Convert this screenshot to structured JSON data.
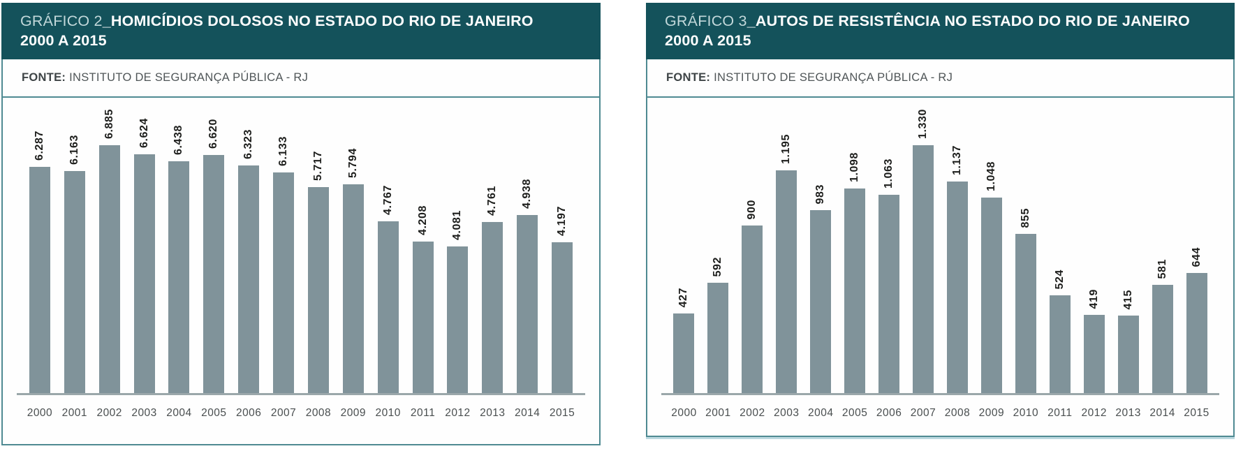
{
  "colors": {
    "header_background": "#14525B",
    "panel_border": "#4F8A92",
    "bar_fill": "#80939A",
    "axis_line": "#9AA7AA",
    "value_label_text": "#1D1E1C",
    "year_label_text": "#494E4F",
    "title_prefix_text": "#C2D8DA",
    "title_bold_text": "#FFFFFF",
    "right_panel_accent": "#BCD9E0"
  },
  "chart_data": [
    {
      "type": "bar",
      "title_prefix": "GRÁFICO 2",
      "title_bold_line1": "_HOMICÍDIOS DOLOSOS NO ESTADO DO RIO DE JANEIRO",
      "title_bold_line2": "2000 A 2015",
      "source_label": "FONTE:",
      "source_text": " INSTITUTO DE SEGURANÇA PÚBLICA - RJ",
      "categories": [
        "2000",
        "2001",
        "2002",
        "2003",
        "2004",
        "2005",
        "2006",
        "2007",
        "2008",
        "2009",
        "2010",
        "2011",
        "2012",
        "2013",
        "2014",
        "2015"
      ],
      "values": [
        6287,
        6163,
        6885,
        6624,
        6438,
        6620,
        6323,
        6133,
        5717,
        5794,
        4767,
        4208,
        4081,
        4761,
        4938,
        4197
      ],
      "value_labels": [
        "6.287",
        "6.163",
        "6.885",
        "6.624",
        "6.438",
        "6.620",
        "6.323",
        "6.133",
        "5.717",
        "5.794",
        "4.767",
        "4.208",
        "4.081",
        "4.761",
        "4.938",
        "4.197"
      ],
      "xlabel": "",
      "ylabel": "",
      "ylim": [
        0,
        6885
      ],
      "grid": "off",
      "legend": "none"
    },
    {
      "type": "bar",
      "title_prefix": "GRÁFICO 3",
      "title_bold_line1": "_AUTOS DE RESISTÊNCIA NO ESTADO DO RIO DE JANEIRO",
      "title_bold_line2": "2000 A 2015",
      "source_label": "FONTE:",
      "source_text": " INSTITUTO DE SEGURANÇA PÚBLICA - RJ",
      "categories": [
        "2000",
        "2001",
        "2002",
        "2003",
        "2004",
        "2005",
        "2006",
        "2007",
        "2008",
        "2009",
        "2010",
        "2011",
        "2012",
        "2013",
        "2014",
        "2015"
      ],
      "values": [
        427,
        592,
        900,
        1195,
        983,
        1098,
        1063,
        1330,
        1137,
        1048,
        855,
        524,
        419,
        415,
        581,
        644
      ],
      "value_labels": [
        "427",
        "592",
        "900",
        "1.195",
        "983",
        "1.098",
        "1.063",
        "1.330",
        "1.137",
        "1.048",
        "855",
        "524",
        "419",
        "415",
        "581",
        "644"
      ],
      "xlabel": "",
      "ylabel": "",
      "ylim": [
        0,
        1330
      ],
      "grid": "off",
      "legend": "none"
    }
  ]
}
